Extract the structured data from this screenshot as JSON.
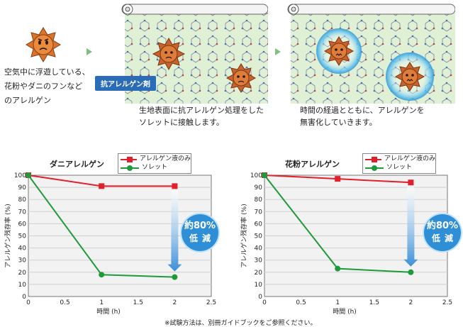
{
  "intro": {
    "airborne_text": [
      "空気中に浮遊している、",
      "花粉やダニのフンなど",
      "のアレルゲン"
    ],
    "agent_label": "抗アレルゲン剤",
    "contact_text": [
      "生地表面に抗アレルゲン処理をした",
      "ソレットに接触します。"
    ],
    "neutralize_text": [
      "時間の経過とともに、アレルゲンを",
      "無害化していきます。"
    ]
  },
  "charts": {
    "mite": {
      "title": "ダニアレルゲン",
      "badge_line1": "約80%",
      "badge_line2": "低減"
    },
    "pollen": {
      "title": "花粉アレルゲン",
      "badge_line1": "約80%",
      "badge_line2": "低減"
    }
  },
  "footnote": "※試験方法は、別冊ガイドブックをご参照ください。",
  "colors": {
    "red": "#e0202a",
    "green": "#1f9a3a",
    "fabric": "#dff0d4",
    "arrow": "#4a90d9"
  },
  "chart_data": [
    {
      "type": "line",
      "title": "ダニアレルゲン",
      "xlabel": "時間 (h)",
      "ylabel": "アレルゲン残存率 (%)",
      "xlim": [
        0,
        2.5
      ],
      "ylim": [
        0,
        100
      ],
      "x_ticks": [
        "0",
        "0.5",
        "1",
        "1.5",
        "2",
        "2.5"
      ],
      "y_ticks": [
        "0",
        "10",
        "20",
        "30",
        "40",
        "50",
        "60",
        "70",
        "80",
        "90",
        "100"
      ],
      "series": [
        {
          "name": "アレルゲン液のみ",
          "color": "#e0202a",
          "marker": "square",
          "x": [
            0,
            1,
            2
          ],
          "values": [
            100,
            91,
            91
          ]
        },
        {
          "name": "ソレット",
          "color": "#1f9a3a",
          "marker": "circle",
          "x": [
            0,
            1,
            2
          ],
          "values": [
            100,
            18,
            16
          ]
        }
      ]
    },
    {
      "type": "line",
      "title": "花粉アレルゲン",
      "xlabel": "時間 (h)",
      "ylabel": "アレルゲン残存率 (%)",
      "xlim": [
        0,
        2.5
      ],
      "ylim": [
        0,
        100
      ],
      "x_ticks": [
        "0",
        "0.5",
        "1",
        "1.5",
        "2",
        "2.5"
      ],
      "y_ticks": [
        "0",
        "10",
        "20",
        "30",
        "40",
        "50",
        "60",
        "70",
        "80",
        "90",
        "100"
      ],
      "series": [
        {
          "name": "アレルゲン液のみ",
          "color": "#e0202a",
          "marker": "square",
          "x": [
            0,
            1,
            2
          ],
          "values": [
            100,
            97,
            94
          ]
        },
        {
          "name": "ソレット",
          "color": "#1f9a3a",
          "marker": "circle",
          "x": [
            0,
            1,
            2
          ],
          "values": [
            100,
            23,
            20
          ]
        }
      ]
    }
  ]
}
